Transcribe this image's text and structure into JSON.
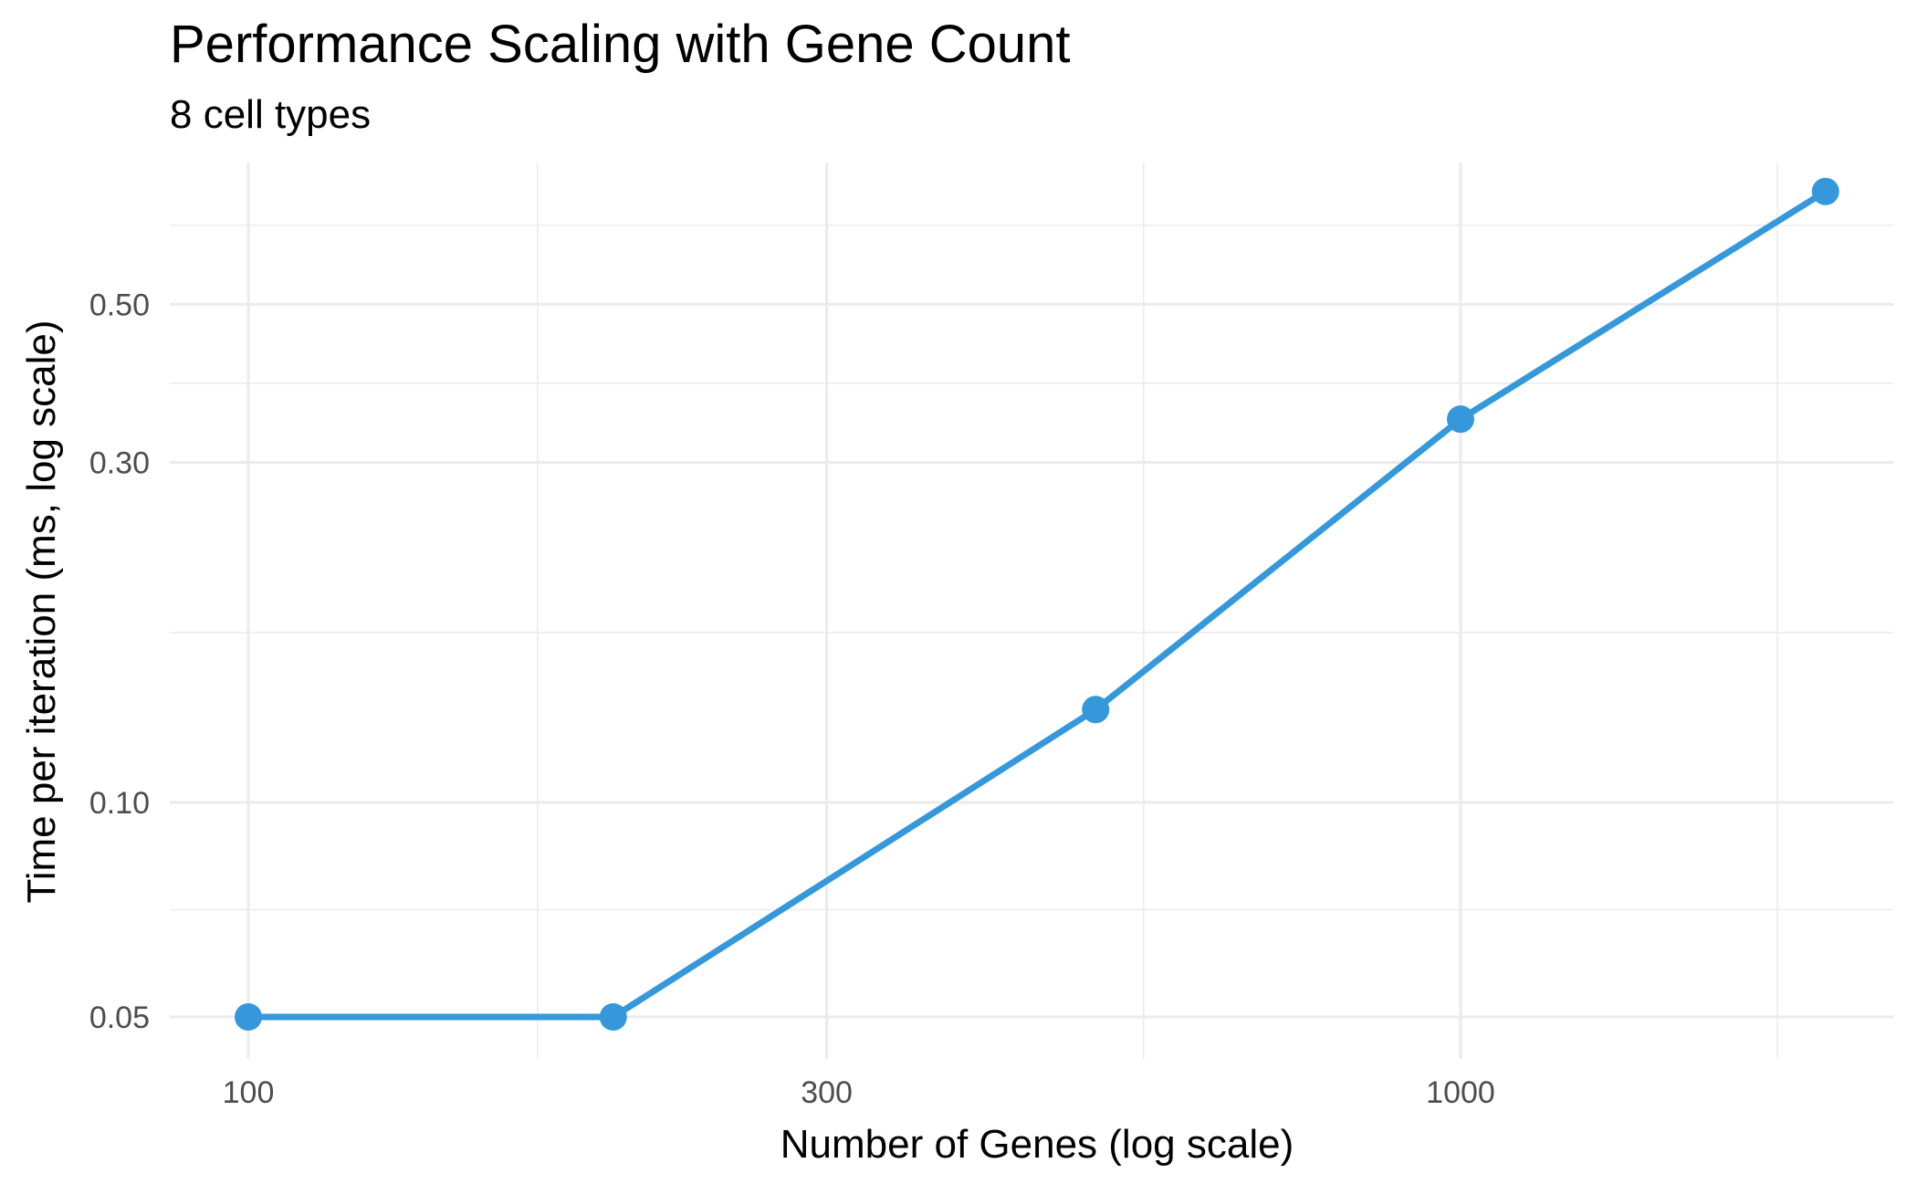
{
  "chart_data": {
    "type": "line",
    "title": "Performance Scaling with Gene Count",
    "subtitle": "8 cell types",
    "xlabel": "Number of Genes (log scale)",
    "ylabel": "Time per iteration (ms, log scale)",
    "x_scale": "log10",
    "y_scale": "log10",
    "xlim": [
      100,
      2500
    ],
    "ylim": [
      0.05,
      0.75
    ],
    "x_ticks": [
      {
        "value": 100,
        "label": "100"
      },
      {
        "value": 300,
        "label": "300"
      },
      {
        "value": 1000,
        "label": "1000"
      }
    ],
    "y_ticks": [
      {
        "value": 0.05,
        "label": "0.05"
      },
      {
        "value": 0.1,
        "label": "0.10"
      },
      {
        "value": 0.3,
        "label": "0.30"
      },
      {
        "value": 0.5,
        "label": "0.50"
      }
    ],
    "grid": true,
    "legend": "none",
    "color": "#3498db",
    "series": [
      {
        "x": [
          100,
          200,
          500,
          1000,
          2000
        ],
        "y": [
          0.05,
          0.05,
          0.135,
          0.345,
          0.72
        ]
      }
    ]
  }
}
